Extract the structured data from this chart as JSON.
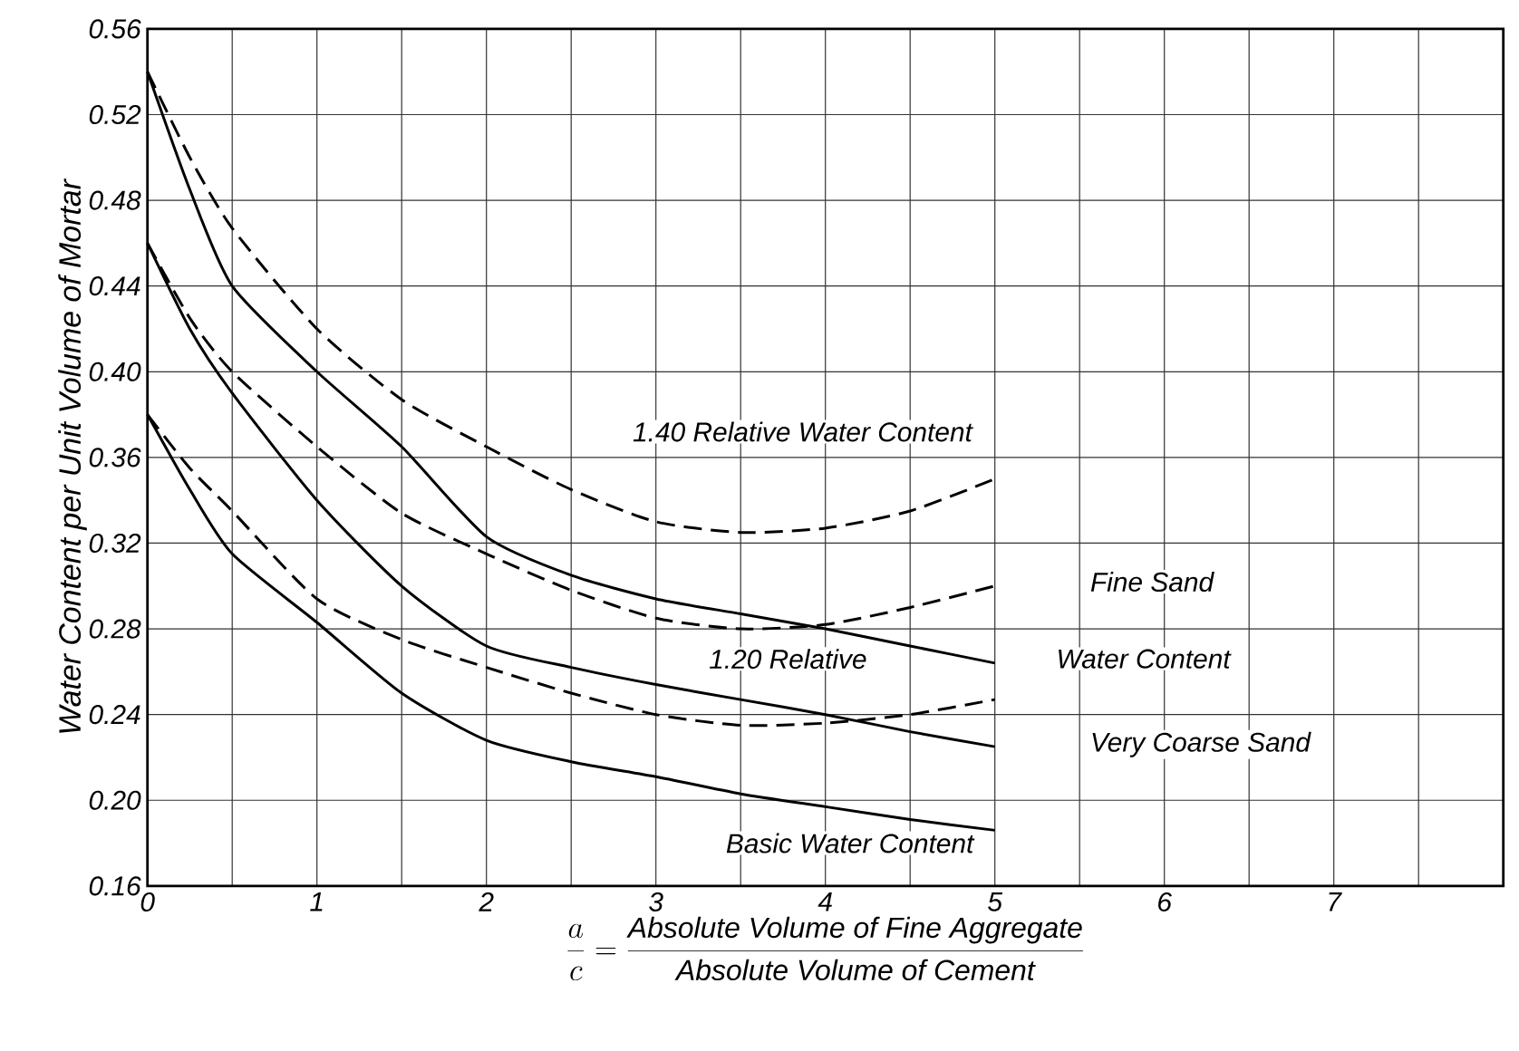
{
  "chart_data": {
    "type": "line",
    "xlabel": "\\frac{a}{c}=\\frac{\\mbox{\\itshape Absolute Volume of Fine Aggregate}}{\\mbox{\\itshape Absolute Volume of Cement}}",
    "ylabel": "Water Content per Unit Volume of Mortar",
    "xlim": [
      0,
      8
    ],
    "ylim": [
      0.16,
      0.56
    ],
    "xticks": [
      0,
      {
        "value": 0.5,
        "label": null
      },
      1,
      {
        "value": 1.5,
        "label": null
      },
      2,
      {
        "value": 2.5,
        "label": null
      },
      3,
      {
        "value": 3.5,
        "label": null
      },
      4,
      {
        "value": 4.5,
        "label": null
      },
      5,
      {
        "value": 5.5,
        "label": null
      },
      6,
      {
        "value": 6.5,
        "label": null
      },
      7,
      {
        "value": 7.5,
        "label": null
      },
      {
        "value": 8,
        "label": null
      }
    ],
    "yticks": [
      0.16,
      {
        "value": 0.2,
        "label": "0.20"
      },
      0.24,
      0.28,
      0.32,
      0.36,
      {
        "value": 0.4,
        "label": "0.40"
      },
      0.44,
      0.48,
      0.52,
      0.56
    ],
    "grid": true,
    "marker": "none",
    "x": [
      0,
      0.25,
      0.5,
      1,
      1.5,
      2,
      2.5,
      3,
      3.5,
      4,
      4.5,
      5
    ],
    "series": [
      {
        "color": "#000000",
        "line_style": "dashed",
        "values": [
          0.54,
          0.5,
          0.467,
          0.42,
          0.387,
          0.365,
          0.345,
          0.33,
          0.325,
          0.327,
          0.335,
          0.35
        ]
      },
      {
        "color": "#000000",
        "line_style": "solid",
        "values": [
          0.54,
          0.485,
          0.44,
          0.4,
          0.365,
          0.323,
          0.305,
          0.294,
          0.287,
          0.28,
          0.272,
          0.264
        ]
      },
      {
        "color": "#000000",
        "line_style": "dashed",
        "values": [
          0.46,
          0.425,
          0.4,
          0.365,
          0.334,
          0.315,
          0.298,
          0.285,
          0.28,
          0.282,
          0.29,
          0.3
        ]
      },
      {
        "color": "#000000",
        "line_style": "solid",
        "values": [
          0.46,
          0.42,
          0.39,
          0.34,
          0.3,
          0.272,
          0.262,
          0.254,
          0.247,
          0.24,
          0.232,
          0.225
        ]
      },
      {
        "color": "#000000",
        "line_style": "dashed",
        "values": [
          0.38,
          0.355,
          0.335,
          0.294,
          0.275,
          0.262,
          0.25,
          0.24,
          0.235,
          0.236,
          0.24,
          0.247
        ]
      },
      {
        "color": "#000000",
        "line_style": "solid",
        "values": [
          0.38,
          0.345,
          0.315,
          0.283,
          0.25,
          0.228,
          0.218,
          0.211,
          0.203,
          0.197,
          0.191,
          0.186
        ]
      }
    ],
    "annotations": [
      "1.40 Relative Water Content",
      "Fine Sand",
      "1.20 Relative",
      "Water Content",
      "Very Coarse Sand",
      "Basic Water Content"
    ]
  }
}
